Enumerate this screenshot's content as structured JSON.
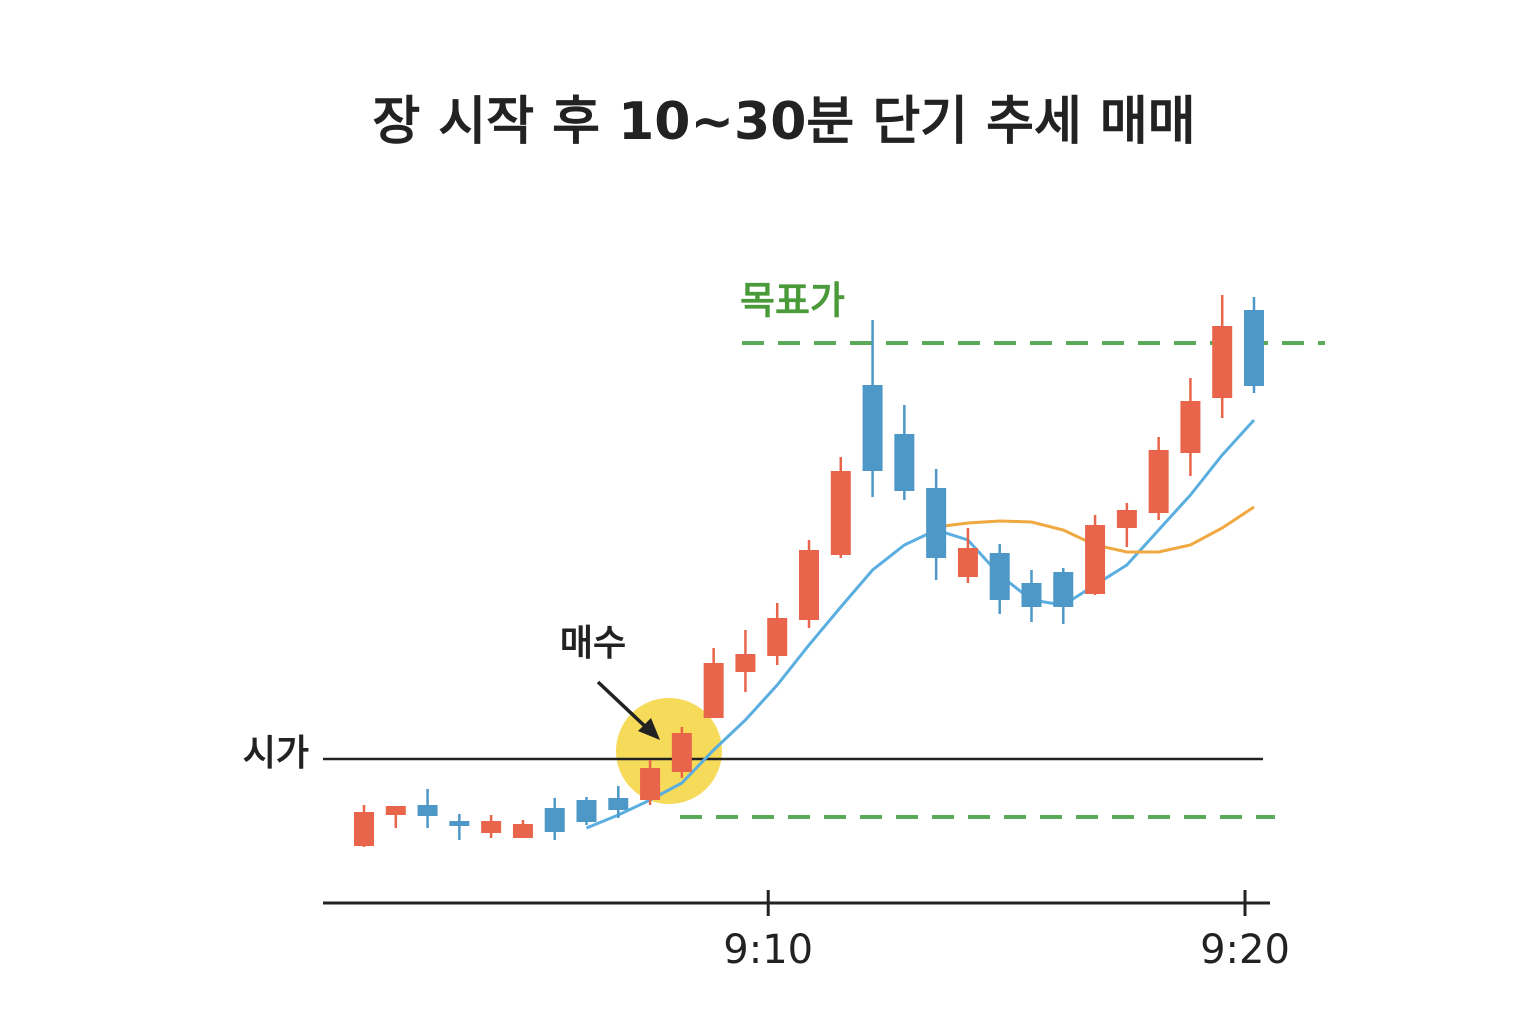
{
  "chart_data": {
    "type": "candlestick",
    "title": "장 시작 후 10~30분 단기 추세 매매",
    "categories": [
      null,
      null,
      null,
      null,
      null,
      null,
      null,
      null,
      null,
      null,
      null,
      null,
      null,
      "9:10",
      null,
      null,
      null,
      null,
      null,
      null,
      null,
      null,
      null,
      null,
      null,
      null,
      null,
      null,
      "9:20"
    ],
    "open": [
      57,
      88,
      98,
      82,
      70,
      65,
      95,
      103,
      105,
      103,
      131,
      185,
      231,
      247,
      283,
      348,
      518,
      469,
      415,
      326,
      350,
      320,
      331,
      309,
      375,
      390,
      450,
      505,
      593
    ],
    "high": [
      98,
      97,
      114,
      89,
      88,
      83,
      105,
      106,
      117,
      143,
      176,
      255,
      273,
      300,
      363,
      446,
      583,
      498,
      434,
      375,
      359,
      333,
      335,
      388,
      400,
      466,
      525,
      608,
      606
    ],
    "low": [
      56,
      75,
      75,
      63,
      65,
      65,
      63,
      78,
      85,
      98,
      125,
      185,
      211,
      238,
      275,
      345,
      406,
      403,
      323,
      320,
      289,
      281,
      279,
      308,
      356,
      383,
      427,
      485,
      510
    ],
    "close": [
      91,
      97,
      87,
      77,
      82,
      79,
      71,
      81,
      93,
      135,
      170,
      240,
      249,
      285,
      353,
      432,
      432,
      412,
      345,
      355,
      303,
      296,
      296,
      378,
      393,
      453,
      502,
      577,
      517
    ],
    "up_color": "#e8644a",
    "down_color": "#4e98c8",
    "series": [
      {
        "color": "#5aaee0",
        "values": [
          null,
          null,
          null,
          null,
          null,
          null,
          null,
          75,
          88,
          103,
          120,
          153,
          183,
          218,
          258,
          296,
          333,
          358,
          373,
          363,
          328,
          303,
          298,
          318,
          338,
          373,
          408,
          448,
          483
        ]
      },
      {
        "color": "#f0a840",
        "values": [
          null,
          null,
          null,
          null,
          null,
          null,
          null,
          null,
          null,
          null,
          null,
          null,
          null,
          null,
          null,
          null,
          null,
          null,
          376,
          380,
          382,
          381,
          373,
          358,
          351,
          351,
          358,
          375,
          396
        ]
      }
    ],
    "lines": [
      {
        "label": "시가",
        "value": 144,
        "color": "#222222",
        "dashed": false
      },
      {
        "label": "목표가",
        "value": 560,
        "color": "#5aaa5a",
        "dashed": true
      },
      {
        "value": 86,
        "color": "#5aaa5a",
        "dashed": true
      }
    ],
    "annotation": "매수",
    "ylim": [
      0,
      620
    ]
  }
}
